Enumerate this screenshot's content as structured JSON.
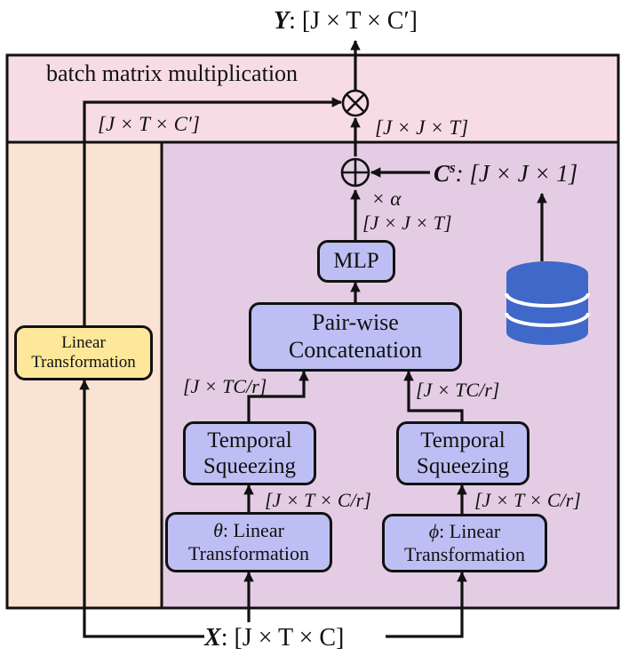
{
  "colors": {
    "pink_band": "#f7dce5",
    "peach_column": "#fae3d3",
    "purple_panel": "#e4cde4",
    "module_blue": "#bdbff4",
    "linear_yellow": "#fde79a",
    "database_blue": "#3f68c8",
    "stroke": "#111111"
  },
  "icons": {
    "multiply": "circled-times-icon",
    "add": "circled-plus-icon",
    "database": "database-icon"
  },
  "output_label": {
    "var": "Y",
    "shape": ": [J × T × C′]"
  },
  "input_label": {
    "var": "X",
    "shape": ": [J × T × C]"
  },
  "bmm_label": "batch matrix multiplication",
  "linear_branch_shape": "[J × T × C′]",
  "bmm_in_shape": "[J × J × T]",
  "prior_label": {
    "var": "C",
    "sup": "s",
    "shape": ": [J × J × 1]"
  },
  "scale_label": "× α",
  "mlp_out_shape": "[J × J × T]",
  "boxes": {
    "linear_transformation": {
      "line1": "Linear",
      "line2": "Transformation"
    },
    "mlp": "MLP",
    "pairwise": {
      "line1": "Pair-wise",
      "line2": "Concatenation"
    },
    "temporal_left": {
      "line1": "Temporal",
      "line2": "Squeezing"
    },
    "temporal_right": {
      "line1": "Temporal",
      "line2": "Squeezing"
    },
    "theta_linear": {
      "sym": "θ",
      "line1": ": Linear",
      "line2": "Transformation"
    },
    "phi_linear": {
      "sym": "ϕ",
      "line1": ": Linear",
      "line2": "Transformation"
    }
  },
  "squeezed_shape_left": "[J × TC/r]",
  "squeezed_shape_right": "[J × TC/r]",
  "reduced_shape_left": "[J × T × C/r]",
  "reduced_shape_right": "[J × T × C/r]"
}
